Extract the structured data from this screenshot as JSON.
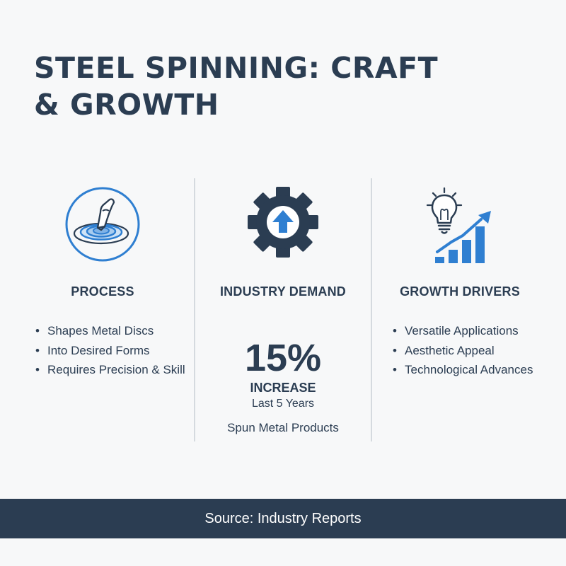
{
  "title": {
    "line1": "STEEL SPINNING: CRAFT",
    "line2": "& GROWTH"
  },
  "columns": {
    "process": {
      "heading": "PROCESS",
      "icon": "metal-spinning-icon",
      "bullets": [
        "Shapes Metal Discs",
        "Into Desired Forms",
        "Requires Precision & Skill"
      ]
    },
    "demand": {
      "heading": "INDUSTRY DEMAND",
      "icon": "gear-arrow-up-icon",
      "stat_value": "15%",
      "stat_label": "INCREASE",
      "stat_period": "Last 5 Years",
      "stat_subject": "Spun Metal Products"
    },
    "drivers": {
      "heading": "GROWTH DRIVERS",
      "icon": "lightbulb-growth-chart-icon",
      "bullets": [
        "Versatile Applications",
        "Aesthetic Appeal",
        "Technological Advances"
      ]
    }
  },
  "footer": {
    "source": "Source: Industry Reports"
  },
  "colors": {
    "navy": "#2b3d52",
    "accent_blue": "#2f7fd1",
    "background": "#f7f8f9"
  }
}
